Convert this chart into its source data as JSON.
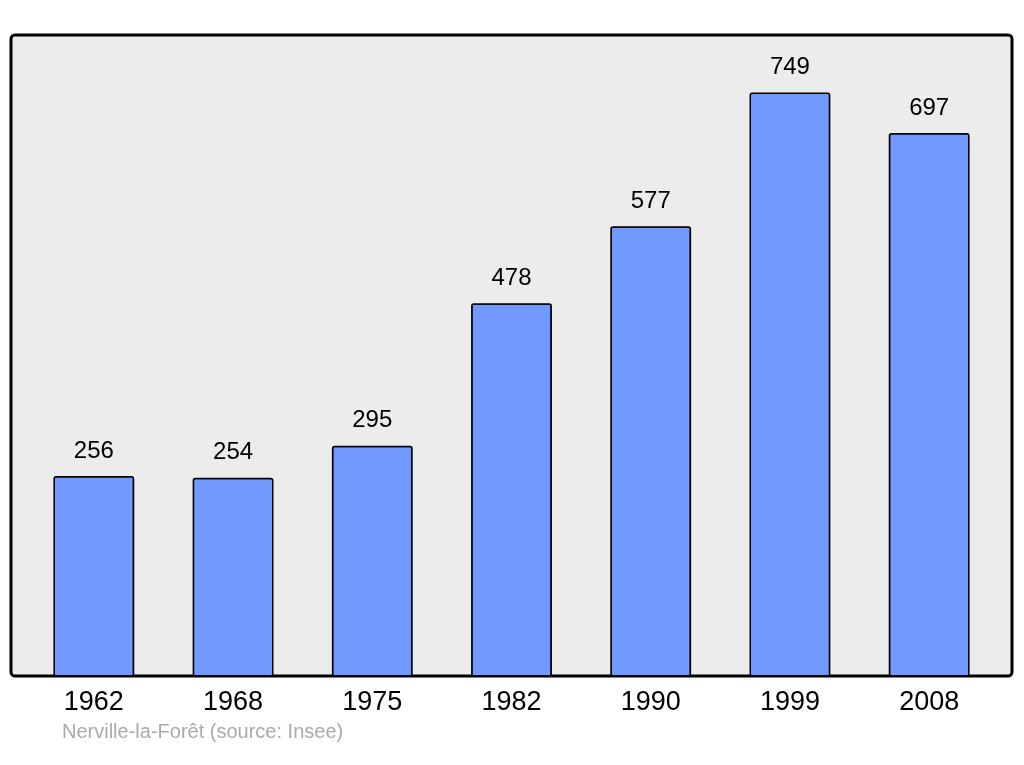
{
  "chart_data": {
    "type": "bar",
    "categories": [
      "1962",
      "1968",
      "1975",
      "1982",
      "1990",
      "1999",
      "2008"
    ],
    "values": [
      256,
      254,
      295,
      478,
      577,
      749,
      697
    ],
    "color": "#7299ff",
    "data_labels": true,
    "grid": false,
    "annotations": [
      "Nerville-la-Forêt",
      "(source: Insee)"
    ]
  }
}
